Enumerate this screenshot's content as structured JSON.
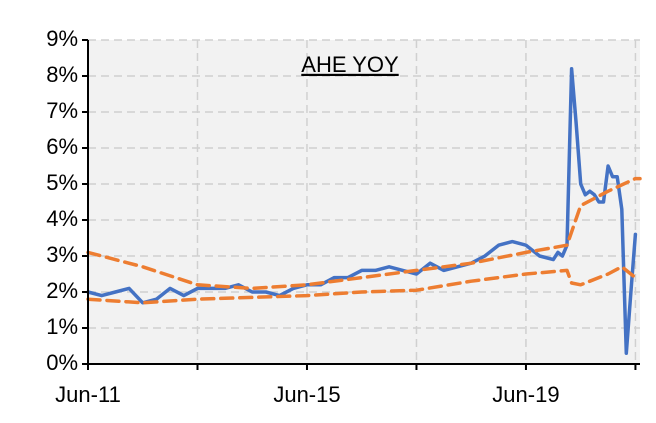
{
  "chart_data": {
    "type": "line",
    "title": "AHE YOY",
    "xlim": [
      "2011-06",
      "2021-07"
    ],
    "xticks": [
      {
        "value": "2011-06",
        "label": "Jun-11"
      },
      {
        "value": "2013-06",
        "label": null
      },
      {
        "value": "2015-06",
        "label": "Jun-15"
      },
      {
        "value": "2017-06",
        "label": null
      },
      {
        "value": "2019-06",
        "label": "Jun-19"
      },
      {
        "value": "2021-06",
        "label": null
      }
    ],
    "ylim": [
      0,
      9
    ],
    "yticks": [
      {
        "value": 0,
        "label": "0%"
      },
      {
        "value": 1,
        "label": "1%"
      },
      {
        "value": 2,
        "label": "2%"
      },
      {
        "value": 3,
        "label": "3%"
      },
      {
        "value": 4,
        "label": "4%"
      },
      {
        "value": 5,
        "label": "5%"
      },
      {
        "value": 6,
        "label": "6%"
      },
      {
        "value": 7,
        "label": "7%"
      },
      {
        "value": 8,
        "label": "8%"
      },
      {
        "value": 9,
        "label": "9%"
      }
    ],
    "grid": true,
    "series": [
      {
        "color": "#4472c4",
        "dash": false,
        "x": [
          "2011-06",
          "2011-09",
          "2011-12",
          "2012-03",
          "2012-06",
          "2012-09",
          "2012-12",
          "2013-03",
          "2013-06",
          "2013-09",
          "2013-12",
          "2014-03",
          "2014-06",
          "2014-09",
          "2014-12",
          "2015-03",
          "2015-06",
          "2015-09",
          "2015-12",
          "2016-03",
          "2016-06",
          "2016-09",
          "2016-12",
          "2017-03",
          "2017-06",
          "2017-09",
          "2017-12",
          "2018-03",
          "2018-06",
          "2018-09",
          "2018-12",
          "2019-03",
          "2019-06",
          "2019-09",
          "2019-12",
          "2020-01",
          "2020-02",
          "2020-03",
          "2020-04",
          "2020-05",
          "2020-06",
          "2020-07",
          "2020-08",
          "2020-09",
          "2020-10",
          "2020-11",
          "2020-12",
          "2021-01",
          "2021-02",
          "2021-03",
          "2021-04",
          "2021-05",
          "2021-06"
        ],
        "values": [
          2.0,
          1.9,
          2.0,
          2.1,
          1.7,
          1.8,
          2.1,
          1.9,
          2.1,
          2.1,
          2.1,
          2.2,
          2.0,
          2.0,
          1.9,
          2.1,
          2.2,
          2.2,
          2.4,
          2.4,
          2.6,
          2.6,
          2.7,
          2.6,
          2.5,
          2.8,
          2.6,
          2.7,
          2.8,
          3.0,
          3.3,
          3.4,
          3.3,
          3.0,
          2.9,
          3.1,
          3.0,
          3.3,
          8.2,
          6.7,
          5.0,
          4.7,
          4.8,
          4.7,
          4.5,
          4.5,
          5.5,
          5.2,
          5.2,
          4.3,
          0.3,
          2.0,
          3.6
        ]
      },
      {
        "color": "#ed7d31",
        "dash": true,
        "x": [
          "2011-06",
          "2012-06",
          "2013-06",
          "2014-06",
          "2015-06",
          "2016-06",
          "2017-06",
          "2018-06",
          "2019-06",
          "2020-03",
          "2020-06",
          "2020-12",
          "2021-06",
          "2021-07"
        ],
        "values": [
          3.1,
          2.7,
          2.2,
          2.1,
          2.2,
          2.4,
          2.6,
          2.8,
          3.1,
          3.3,
          4.4,
          4.8,
          5.15,
          5.15
        ]
      },
      {
        "color": "#ed7d31",
        "dash": true,
        "x": [
          "2011-06",
          "2012-06",
          "2013-06",
          "2014-06",
          "2015-06",
          "2016-06",
          "2017-06",
          "2018-06",
          "2019-06",
          "2020-03",
          "2020-04",
          "2020-06",
          "2020-12",
          "2021-03",
          "2021-06"
        ],
        "values": [
          1.8,
          1.7,
          1.8,
          1.85,
          1.9,
          2.0,
          2.05,
          2.3,
          2.5,
          2.6,
          2.25,
          2.2,
          2.5,
          2.7,
          2.4
        ]
      }
    ]
  }
}
